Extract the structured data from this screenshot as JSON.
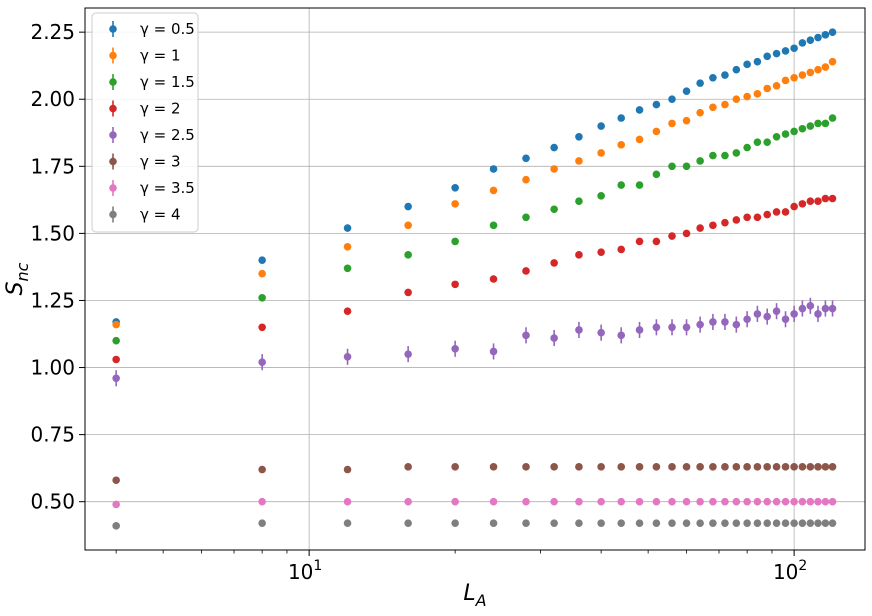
{
  "chart_data": {
    "type": "scatter",
    "title": "",
    "xlabel": "L_A",
    "ylabel": "S_nc",
    "xscale": "log",
    "xlim": [
      3.45,
      140
    ],
    "ylim": [
      0.32,
      2.34
    ],
    "grid": true,
    "legend_position": "top-left",
    "x_ticks": [
      {
        "value": 10,
        "base": "10",
        "exp": "1"
      },
      {
        "value": 100,
        "base": "10",
        "exp": "2"
      }
    ],
    "y_ticks": [
      {
        "value": 0.5,
        "label": "0.50"
      },
      {
        "value": 0.75,
        "label": "0.75"
      },
      {
        "value": 1.0,
        "label": "1.00"
      },
      {
        "value": 1.25,
        "label": "1.25"
      },
      {
        "value": 1.5,
        "label": "1.50"
      },
      {
        "value": 1.75,
        "label": "1.75"
      },
      {
        "value": 2.0,
        "label": "2.00"
      },
      {
        "value": 2.25,
        "label": "2.25"
      }
    ],
    "x": [
      4,
      8,
      12,
      16,
      20,
      24,
      28,
      32,
      36,
      40,
      44,
      48,
      52,
      56,
      60,
      64,
      68,
      72,
      76,
      80,
      84,
      88,
      92,
      96,
      100,
      104,
      108,
      112,
      116,
      120
    ],
    "series": [
      {
        "name": "γ = 0.5",
        "color": "#1f77b4",
        "values": [
          1.17,
          1.4,
          1.52,
          1.6,
          1.67,
          1.74,
          1.78,
          1.82,
          1.86,
          1.9,
          1.93,
          1.96,
          1.98,
          2.0,
          2.03,
          2.06,
          2.08,
          2.09,
          2.11,
          2.13,
          2.14,
          2.16,
          2.17,
          2.18,
          2.19,
          2.21,
          2.22,
          2.23,
          2.24,
          2.25
        ]
      },
      {
        "name": "γ = 1",
        "color": "#ff7f0e",
        "values": [
          1.16,
          1.35,
          1.45,
          1.53,
          1.61,
          1.66,
          1.7,
          1.74,
          1.77,
          1.8,
          1.83,
          1.85,
          1.88,
          1.91,
          1.92,
          1.95,
          1.97,
          1.98,
          2.0,
          2.01,
          2.02,
          2.04,
          2.05,
          2.07,
          2.08,
          2.09,
          2.1,
          2.11,
          2.12,
          2.14
        ]
      },
      {
        "name": "γ = 1.5",
        "color": "#2ca02c",
        "values": [
          1.1,
          1.26,
          1.37,
          1.42,
          1.47,
          1.53,
          1.56,
          1.59,
          1.62,
          1.64,
          1.68,
          1.68,
          1.72,
          1.75,
          1.75,
          1.77,
          1.79,
          1.79,
          1.8,
          1.82,
          1.84,
          1.84,
          1.86,
          1.87,
          1.88,
          1.89,
          1.9,
          1.91,
          1.91,
          1.93
        ]
      },
      {
        "name": "γ = 2",
        "color": "#d62728",
        "values": [
          1.03,
          1.15,
          1.21,
          1.28,
          1.31,
          1.33,
          1.36,
          1.39,
          1.42,
          1.43,
          1.44,
          1.47,
          1.47,
          1.49,
          1.5,
          1.52,
          1.53,
          1.54,
          1.55,
          1.56,
          1.56,
          1.57,
          1.58,
          1.58,
          1.6,
          1.61,
          1.62,
          1.62,
          1.63,
          1.63
        ]
      },
      {
        "name": "γ = 2.5",
        "color": "#9467bd",
        "values": [
          0.96,
          1.02,
          1.04,
          1.05,
          1.07,
          1.06,
          1.12,
          1.11,
          1.14,
          1.13,
          1.12,
          1.14,
          1.15,
          1.15,
          1.15,
          1.16,
          1.17,
          1.17,
          1.16,
          1.18,
          1.2,
          1.19,
          1.21,
          1.18,
          1.2,
          1.22,
          1.23,
          1.2,
          1.22,
          1.22
        ],
        "err": [
          0.03,
          0.03,
          0.03,
          0.03,
          0.03,
          0.03,
          0.03,
          0.03,
          0.03,
          0.03,
          0.03,
          0.03,
          0.03,
          0.03,
          0.03,
          0.03,
          0.03,
          0.03,
          0.03,
          0.03,
          0.03,
          0.03,
          0.03,
          0.03,
          0.03,
          0.03,
          0.03,
          0.03,
          0.03,
          0.03
        ]
      },
      {
        "name": "γ = 3",
        "color": "#8c564b",
        "values": [
          0.58,
          0.62,
          0.62,
          0.63,
          0.63,
          0.63,
          0.63,
          0.63,
          0.63,
          0.63,
          0.63,
          0.63,
          0.63,
          0.63,
          0.63,
          0.63,
          0.63,
          0.63,
          0.63,
          0.63,
          0.63,
          0.63,
          0.63,
          0.63,
          0.63,
          0.63,
          0.63,
          0.63,
          0.63,
          0.63
        ]
      },
      {
        "name": "γ = 3.5",
        "color": "#e377c2",
        "values": [
          0.49,
          0.5,
          0.5,
          0.5,
          0.5,
          0.5,
          0.5,
          0.5,
          0.5,
          0.5,
          0.5,
          0.5,
          0.5,
          0.5,
          0.5,
          0.5,
          0.5,
          0.5,
          0.5,
          0.5,
          0.5,
          0.5,
          0.5,
          0.5,
          0.5,
          0.5,
          0.5,
          0.5,
          0.5,
          0.5
        ]
      },
      {
        "name": "γ = 4",
        "color": "#7f7f7f",
        "values": [
          0.41,
          0.42,
          0.42,
          0.42,
          0.42,
          0.42,
          0.42,
          0.42,
          0.42,
          0.42,
          0.42,
          0.42,
          0.42,
          0.42,
          0.42,
          0.42,
          0.42,
          0.42,
          0.42,
          0.42,
          0.42,
          0.42,
          0.42,
          0.42,
          0.42,
          0.42,
          0.42,
          0.42,
          0.42,
          0.42
        ]
      }
    ]
  }
}
